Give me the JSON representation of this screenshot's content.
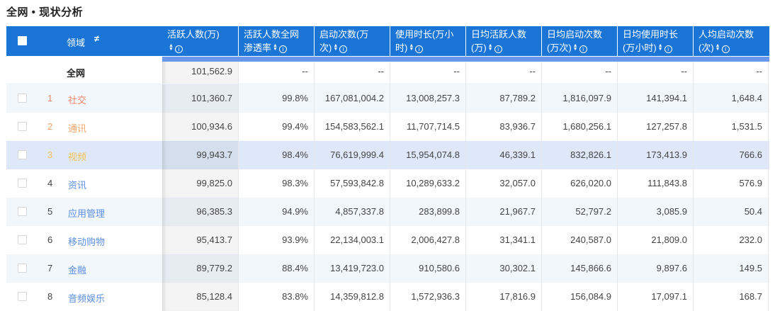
{
  "page": {
    "title": "全网 • 现状分析"
  },
  "colors": {
    "header_bg": "#1b75d6",
    "band": "#6798ec",
    "rank1": "#f08a6a",
    "rank2": "#f2a56b",
    "rank3": "#f3c15c",
    "link": "#5b8fe6"
  },
  "table": {
    "header": {
      "domain_label": "领域",
      "pin_icon": "pin-icon",
      "columns": [
        {
          "line1": "活跃人数(万)",
          "line2": ""
        },
        {
          "line1": "活跃人数全网",
          "line2": "渗透率"
        },
        {
          "line1": "启动次数(万",
          "line2": "次)"
        },
        {
          "line1": "使用时长(万小",
          "line2": "时)"
        },
        {
          "line1": "日均活跃人数",
          "line2": "(万)"
        },
        {
          "line1": "日均启动次数",
          "line2": "(万次)"
        },
        {
          "line1": "日均使用时长",
          "line2": "(万小时)"
        },
        {
          "line1": "人均启动次数",
          "line2": "(次)"
        }
      ],
      "sort_icon": "⇕",
      "info_icon": "i"
    },
    "total": {
      "name": "全网",
      "values": [
        "101,562.9",
        "--",
        "--",
        "--",
        "--",
        "--",
        "--",
        "--"
      ]
    },
    "rows": [
      {
        "rank": "1",
        "name": "社交",
        "values": [
          "101,360.7",
          "99.8%",
          "167,081,004.2",
          "13,008,257.3",
          "87,789.2",
          "1,816,097.9",
          "141,394.1",
          "1,648.4"
        ]
      },
      {
        "rank": "2",
        "name": "通讯",
        "values": [
          "100,934.6",
          "99.4%",
          "154,583,562.1",
          "11,707,714.5",
          "83,936.7",
          "1,680,256.1",
          "127,257.8",
          "1,531.5"
        ]
      },
      {
        "rank": "3",
        "name": "视频",
        "values": [
          "99,943.7",
          "98.4%",
          "76,619,999.4",
          "15,954,074.8",
          "46,339.1",
          "832,826.1",
          "173,413.9",
          "766.6"
        ]
      },
      {
        "rank": "4",
        "name": "资讯",
        "values": [
          "99,825.0",
          "98.3%",
          "57,593,842.8",
          "10,289,633.2",
          "32,057.0",
          "626,020.0",
          "111,843.8",
          "576.9"
        ]
      },
      {
        "rank": "5",
        "name": "应用管理",
        "values": [
          "96,385.3",
          "94.9%",
          "4,857,337.8",
          "283,899.8",
          "21,967.7",
          "52,797.2",
          "3,085.9",
          "50.4"
        ]
      },
      {
        "rank": "6",
        "name": "移动购物",
        "values": [
          "95,413.7",
          "93.9%",
          "22,134,003.1",
          "2,006,427.8",
          "31,341.1",
          "240,587.0",
          "21,809.0",
          "232.0"
        ]
      },
      {
        "rank": "7",
        "name": "金融",
        "values": [
          "89,779.2",
          "88.4%",
          "13,419,723.0",
          "910,580.6",
          "30,302.1",
          "145,866.6",
          "9,897.6",
          "149.5"
        ]
      },
      {
        "rank": "8",
        "name": "音频娱乐",
        "values": [
          "85,128.4",
          "83.8%",
          "14,359,812.8",
          "1,572,936.3",
          "17,816.9",
          "156,084.9",
          "17,097.1",
          "168.7"
        ]
      }
    ]
  }
}
